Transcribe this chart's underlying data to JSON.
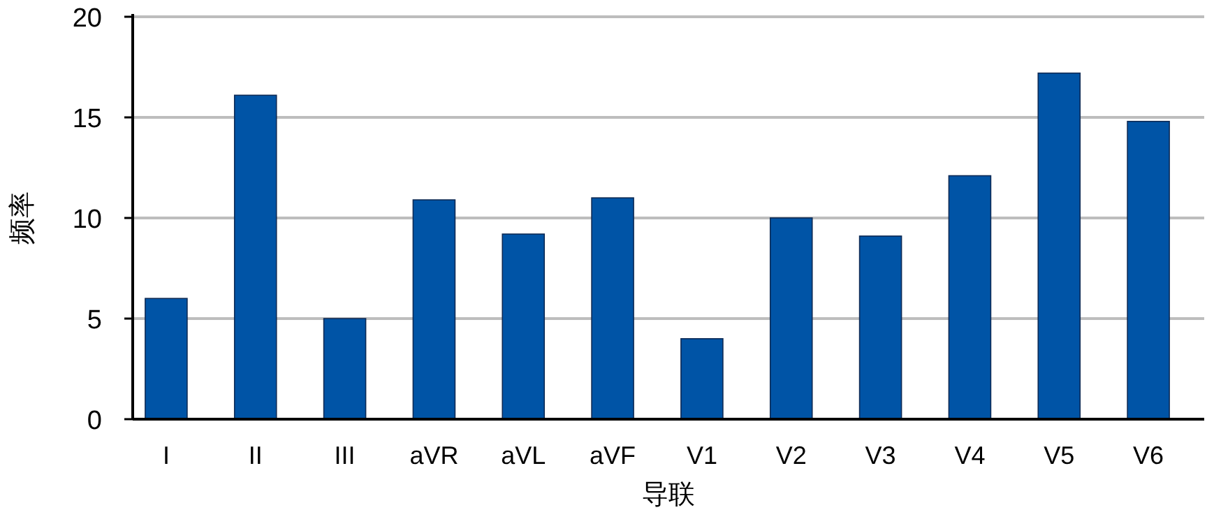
{
  "chart_data": {
    "type": "bar",
    "xlabel": "导联",
    "ylabel": "频率",
    "categories": [
      "I",
      "II",
      "III",
      "aVR",
      "aVL",
      "aVF",
      "V1",
      "V2",
      "V3",
      "V4",
      "V5",
      "V6"
    ],
    "values": [
      6,
      16.1,
      5,
      10.9,
      9.2,
      11,
      4,
      10,
      9.1,
      12.1,
      17.2,
      14.8
    ],
    "color": "#0054a6",
    "ylim": [
      0,
      20
    ],
    "yticks": [
      0,
      5,
      10,
      15,
      20
    ],
    "grid": "y"
  }
}
